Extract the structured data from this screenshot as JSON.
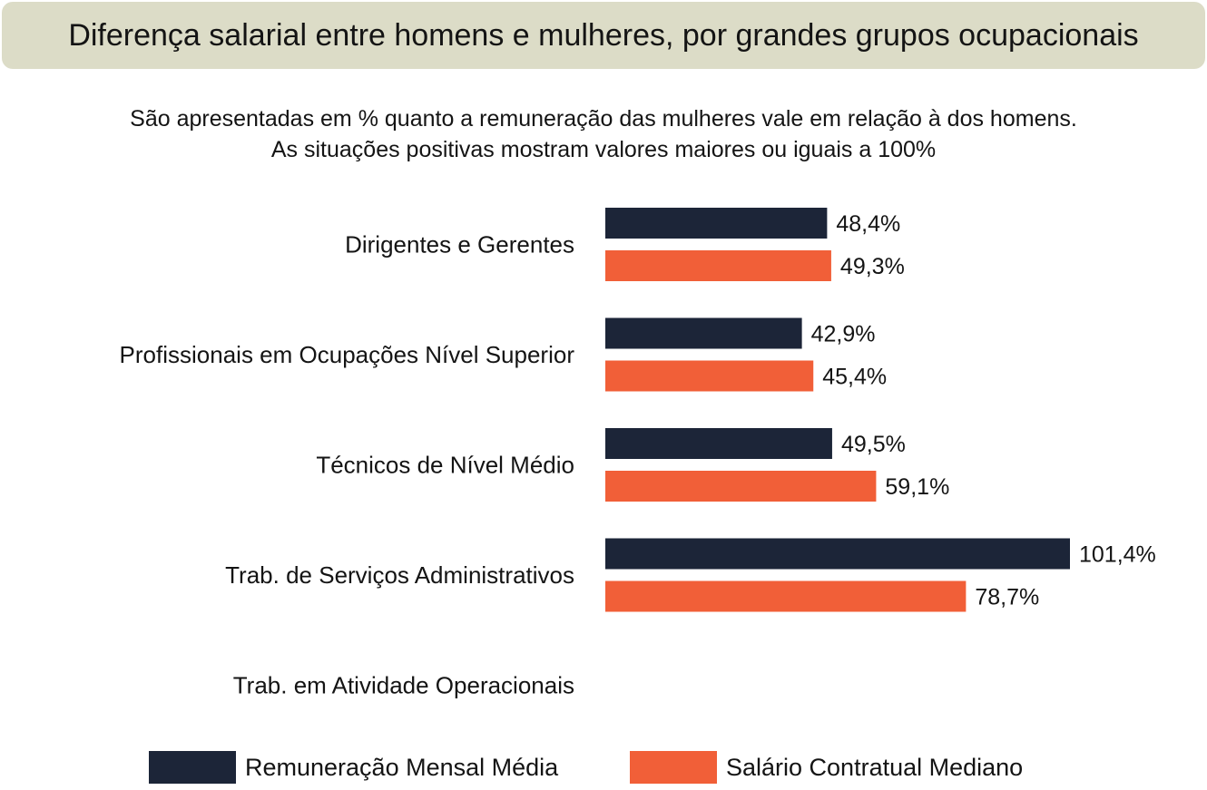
{
  "title": "Diferença salarial entre homens e mulheres, por grandes grupos ocupacionais",
  "subtitle_lines": [
    "São apresentadas em % quanto a remuneração das mulheres vale em relação à dos homens.",
    "As situações positivas mostram valores maiores ou iguais a 100%"
  ],
  "colors": {
    "remuneracao": "#1c2538",
    "salario": "#f15f38",
    "title_bg": "#dcdcc7"
  },
  "chart_data": {
    "type": "bar",
    "orientation": "horizontal",
    "categories": [
      "Dirigentes e Gerentes",
      "Profissionais em Ocupações Nível Superior",
      "Técnicos de Nível Médio",
      "Trab. de Serviços Administrativos",
      "Trab. em Atividade Operacionais"
    ],
    "series": [
      {
        "name": "Remuneração Mensal Média",
        "values": [
          48.4,
          42.9,
          49.5,
          101.4,
          null
        ],
        "labels": [
          "48,4%",
          "42,9%",
          "49,5%",
          "101,4%",
          ""
        ]
      },
      {
        "name": "Salário Contratual Mediano",
        "values": [
          49.3,
          45.4,
          59.1,
          78.7,
          null
        ],
        "labels": [
          "49,3%",
          "45,4%",
          "59,1%",
          "78,7%",
          ""
        ]
      }
    ],
    "unit": "%",
    "xlim": [
      0,
      101.4
    ],
    "grid": false,
    "legend": "bottom"
  },
  "legend": [
    {
      "label": "Remuneração Mensal Média"
    },
    {
      "label": "Salário Contratual Mediano"
    }
  ]
}
